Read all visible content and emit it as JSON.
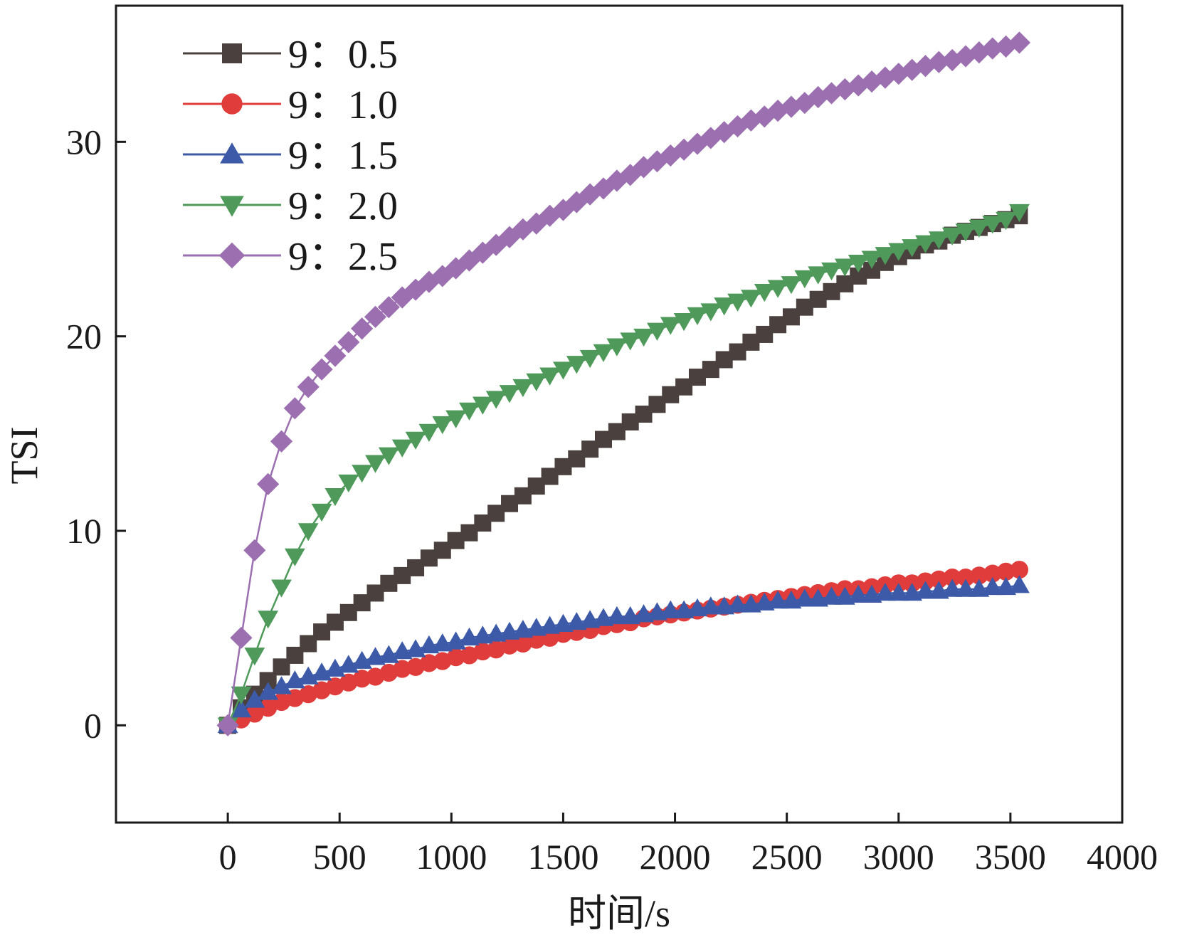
{
  "chart_data": {
    "type": "line",
    "xlabel": "时间/s",
    "ylabel": "TSI",
    "xlim": [
      -500,
      4000
    ],
    "ylim": [
      -5,
      37
    ],
    "xticks": [
      0,
      500,
      1000,
      1500,
      2000,
      2500,
      3000,
      3500,
      4000
    ],
    "yticks": [
      0,
      10,
      20,
      30
    ],
    "x_tick_labels": [
      "0",
      "500",
      "1000",
      "1500",
      "2000",
      "2500",
      "3000",
      "3500",
      "4000"
    ],
    "y_tick_labels": [
      "0",
      "10",
      "20",
      "30"
    ],
    "grid": false,
    "legend_position": "top-left",
    "series": [
      {
        "name": "9：0.5",
        "color": "#4a403e",
        "marker": "square",
        "x": [
          0,
          60,
          120,
          180,
          240,
          300,
          360,
          420,
          480,
          540,
          600,
          660,
          720,
          780,
          840,
          900,
          960,
          1020,
          1080,
          1140,
          1200,
          1260,
          1320,
          1380,
          1440,
          1500,
          1560,
          1620,
          1680,
          1740,
          1800,
          1860,
          1920,
          1980,
          2040,
          2100,
          2160,
          2220,
          2280,
          2340,
          2400,
          2460,
          2520,
          2580,
          2640,
          2700,
          2760,
          2820,
          2880,
          2940,
          3000,
          3060,
          3120,
          3180,
          3240,
          3300,
          3360,
          3420,
          3480,
          3540
        ],
        "y": [
          0,
          0.9,
          1.6,
          2.3,
          3.0,
          3.6,
          4.2,
          4.8,
          5.3,
          5.8,
          6.3,
          6.8,
          7.3,
          7.7,
          8.1,
          8.6,
          9.0,
          9.5,
          9.9,
          10.4,
          10.9,
          11.4,
          11.8,
          12.3,
          12.8,
          13.3,
          13.7,
          14.2,
          14.7,
          15.1,
          15.6,
          16.0,
          16.5,
          17.0,
          17.4,
          17.9,
          18.3,
          18.8,
          19.2,
          19.7,
          20.1,
          20.6,
          21.0,
          21.5,
          21.9,
          22.3,
          22.7,
          23.1,
          23.4,
          23.8,
          24.1,
          24.4,
          24.7,
          24.9,
          25.2,
          25.4,
          25.6,
          25.8,
          26.0,
          26.2
        ]
      },
      {
        "name": "9：1.0",
        "color": "#e03c3c",
        "marker": "circle",
        "x": [
          0,
          60,
          120,
          180,
          240,
          300,
          360,
          420,
          480,
          540,
          600,
          660,
          720,
          780,
          840,
          900,
          960,
          1020,
          1080,
          1140,
          1200,
          1260,
          1320,
          1380,
          1440,
          1500,
          1560,
          1620,
          1680,
          1740,
          1800,
          1860,
          1920,
          1980,
          2040,
          2100,
          2160,
          2220,
          2280,
          2340,
          2400,
          2460,
          2520,
          2580,
          2640,
          2700,
          2760,
          2820,
          2880,
          2940,
          3000,
          3060,
          3120,
          3180,
          3240,
          3300,
          3360,
          3420,
          3480,
          3540
        ],
        "y": [
          0,
          0.3,
          0.6,
          0.9,
          1.2,
          1.4,
          1.6,
          1.8,
          2.0,
          2.2,
          2.4,
          2.5,
          2.7,
          2.9,
          3.0,
          3.2,
          3.3,
          3.5,
          3.6,
          3.8,
          3.9,
          4.1,
          4.2,
          4.4,
          4.5,
          4.7,
          4.8,
          4.9,
          5.1,
          5.2,
          5.3,
          5.5,
          5.6,
          5.7,
          5.8,
          5.9,
          6.0,
          6.1,
          6.2,
          6.3,
          6.4,
          6.5,
          6.6,
          6.7,
          6.8,
          6.9,
          7.0,
          7.0,
          7.1,
          7.2,
          7.3,
          7.3,
          7.4,
          7.5,
          7.6,
          7.6,
          7.7,
          7.8,
          7.9,
          8.0
        ]
      },
      {
        "name": "9：1.5",
        "color": "#3c5aa8",
        "marker": "triangle-up",
        "x": [
          0,
          60,
          120,
          180,
          240,
          300,
          360,
          420,
          480,
          540,
          600,
          660,
          720,
          780,
          840,
          900,
          960,
          1020,
          1080,
          1140,
          1200,
          1260,
          1320,
          1380,
          1440,
          1500,
          1560,
          1620,
          1680,
          1740,
          1800,
          1860,
          1920,
          1980,
          2040,
          2100,
          2160,
          2220,
          2280,
          2340,
          2400,
          2460,
          2520,
          2580,
          2640,
          2700,
          2760,
          2820,
          2880,
          2940,
          3000,
          3060,
          3120,
          3180,
          3240,
          3300,
          3360,
          3420,
          3480,
          3540
        ],
        "y": [
          0,
          0.8,
          1.3,
          1.7,
          2.0,
          2.3,
          2.5,
          2.7,
          2.9,
          3.1,
          3.3,
          3.5,
          3.6,
          3.8,
          3.9,
          4.1,
          4.2,
          4.3,
          4.5,
          4.6,
          4.7,
          4.8,
          4.9,
          5.0,
          5.1,
          5.2,
          5.3,
          5.4,
          5.5,
          5.6,
          5.6,
          5.7,
          5.8,
          5.9,
          5.9,
          6.0,
          6.1,
          6.1,
          6.2,
          6.2,
          6.3,
          6.4,
          6.4,
          6.5,
          6.5,
          6.6,
          6.6,
          6.7,
          6.7,
          6.8,
          6.8,
          6.8,
          6.9,
          6.9,
          7.0,
          7.0,
          7.0,
          7.1,
          7.1,
          7.2
        ]
      },
      {
        "name": "9：2.0",
        "color": "#4f9a5a",
        "marker": "triangle-down",
        "x": [
          0,
          60,
          120,
          180,
          240,
          300,
          360,
          420,
          480,
          540,
          600,
          660,
          720,
          780,
          840,
          900,
          960,
          1020,
          1080,
          1140,
          1200,
          1260,
          1320,
          1380,
          1440,
          1500,
          1560,
          1620,
          1680,
          1740,
          1800,
          1860,
          1920,
          1980,
          2040,
          2100,
          2160,
          2220,
          2280,
          2340,
          2400,
          2460,
          2520,
          2580,
          2640,
          2700,
          2760,
          2820,
          2880,
          2940,
          3000,
          3060,
          3120,
          3180,
          3240,
          3300,
          3360,
          3420,
          3480,
          3540
        ],
        "y": [
          0,
          1.6,
          3.6,
          5.5,
          7.1,
          8.7,
          10.0,
          11.0,
          11.8,
          12.5,
          13.0,
          13.5,
          13.9,
          14.3,
          14.7,
          15.1,
          15.5,
          15.8,
          16.2,
          16.5,
          16.8,
          17.1,
          17.4,
          17.7,
          18.0,
          18.3,
          18.6,
          18.9,
          19.2,
          19.5,
          19.8,
          20.0,
          20.3,
          20.6,
          20.8,
          21.1,
          21.3,
          21.6,
          21.8,
          22.0,
          22.3,
          22.5,
          22.7,
          23.0,
          23.2,
          23.4,
          23.6,
          23.8,
          24.0,
          24.2,
          24.4,
          24.6,
          24.8,
          25.0,
          25.2,
          25.4,
          25.6,
          25.8,
          26.0,
          26.4
        ]
      },
      {
        "name": "9：2.5",
        "color": "#9b6fb0",
        "marker": "diamond",
        "x": [
          0,
          60,
          120,
          180,
          240,
          300,
          360,
          420,
          480,
          540,
          600,
          660,
          720,
          780,
          840,
          900,
          960,
          1020,
          1080,
          1140,
          1200,
          1260,
          1320,
          1380,
          1440,
          1500,
          1560,
          1620,
          1680,
          1740,
          1800,
          1860,
          1920,
          1980,
          2040,
          2100,
          2160,
          2220,
          2280,
          2340,
          2400,
          2460,
          2520,
          2580,
          2640,
          2700,
          2760,
          2820,
          2880,
          2940,
          3000,
          3060,
          3120,
          3180,
          3240,
          3300,
          3360,
          3420,
          3480,
          3540
        ],
        "y": [
          0,
          4.5,
          9.0,
          12.4,
          14.6,
          16.3,
          17.4,
          18.3,
          19.0,
          19.7,
          20.4,
          21.0,
          21.5,
          22.0,
          22.4,
          22.8,
          23.1,
          23.5,
          23.9,
          24.3,
          24.7,
          25.1,
          25.5,
          25.8,
          26.2,
          26.5,
          26.9,
          27.3,
          27.6,
          28.0,
          28.3,
          28.7,
          29.0,
          29.3,
          29.6,
          29.9,
          30.2,
          30.5,
          30.8,
          31.1,
          31.3,
          31.6,
          31.8,
          32.0,
          32.3,
          32.5,
          32.7,
          32.9,
          33.1,
          33.3,
          33.5,
          33.7,
          33.9,
          34.1,
          34.2,
          34.4,
          34.6,
          34.8,
          34.9,
          35.1
        ]
      }
    ]
  }
}
